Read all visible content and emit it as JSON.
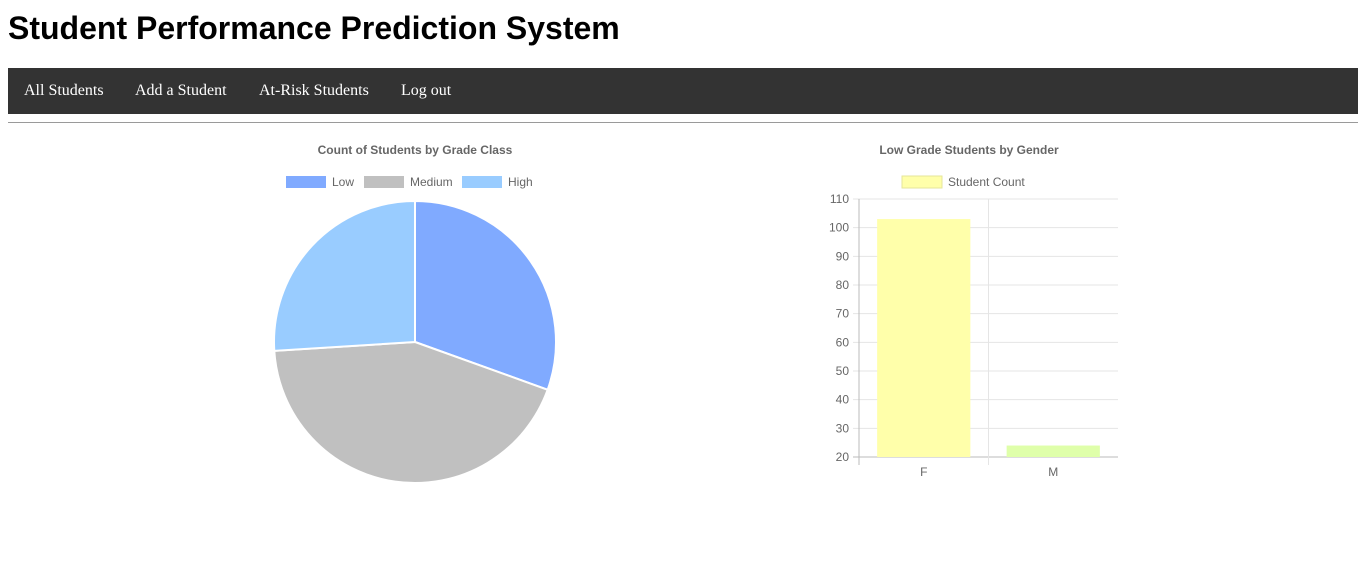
{
  "header": {
    "title": "Student Performance Prediction System"
  },
  "nav": {
    "items": [
      {
        "label": "All Students"
      },
      {
        "label": "Add a Student"
      },
      {
        "label": "At-Risk Students"
      },
      {
        "label": "Log out"
      }
    ]
  },
  "colors": {
    "navbar": "#333333",
    "low": "#80aaff",
    "medium": "#c0c0c0",
    "high": "#99ccff",
    "bar_f": "#ffffaa",
    "bar_m": "#dfffaa"
  },
  "chart_data": [
    {
      "type": "pie",
      "title": "Count of Students by Grade Class",
      "categories": [
        "Low",
        "Medium",
        "High"
      ],
      "values": [
        30.5,
        43.5,
        26
      ],
      "colors": [
        "#80aaff",
        "#c0c0c0",
        "#99ccff"
      ],
      "legend": "top"
    },
    {
      "type": "bar",
      "title": "Low Grade Students by Gender",
      "categories": [
        "F",
        "M"
      ],
      "series": [
        {
          "name": "Student Count",
          "values": [
            103,
            24
          ]
        }
      ],
      "colors": [
        "#ffffaa",
        "#dfffaa"
      ],
      "ylim": [
        20,
        110
      ],
      "yticks": [
        "110",
        "100",
        "90",
        "80",
        "70",
        "60",
        "50",
        "40",
        "30",
        "20"
      ],
      "grid": true,
      "legend": "top"
    }
  ]
}
